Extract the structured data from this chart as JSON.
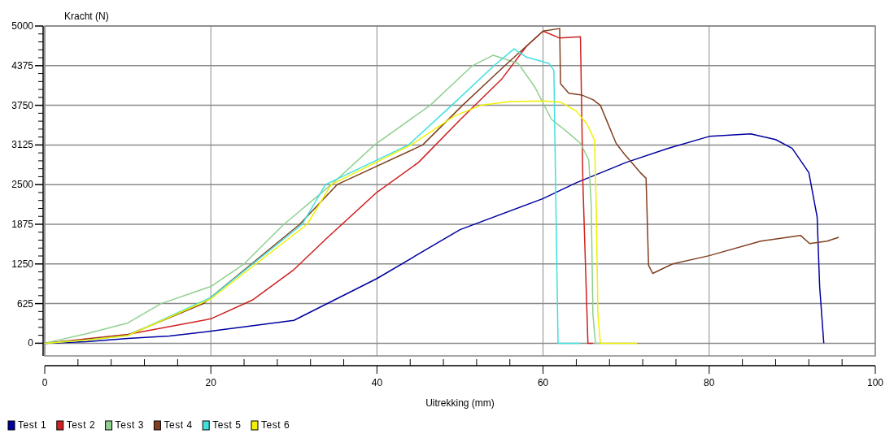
{
  "chart_data": {
    "type": "line",
    "xlabel": "Uitrekking (mm)",
    "ylabel": "Kracht (N)",
    "xlim": [
      0,
      100
    ],
    "ylim": [
      -200,
      5000
    ],
    "xticks": [
      0,
      {
        "value": 4,
        "label": null
      },
      {
        "value": 8,
        "label": null
      },
      {
        "value": 12,
        "label": null
      },
      {
        "value": 16,
        "label": null
      },
      20,
      {
        "value": 24,
        "label": null
      },
      {
        "value": 28,
        "label": null
      },
      {
        "value": 32,
        "label": null
      },
      {
        "value": 36,
        "label": null
      },
      40,
      {
        "value": 44,
        "label": null
      },
      {
        "value": 48,
        "label": null
      },
      {
        "value": 52,
        "label": null
      },
      {
        "value": 56,
        "label": null
      },
      60,
      {
        "value": 64,
        "label": null
      },
      {
        "value": 68,
        "label": null
      },
      {
        "value": 72,
        "label": null
      },
      {
        "value": 76,
        "label": null
      },
      80,
      {
        "value": 84,
        "label": null
      },
      {
        "value": 88,
        "label": null
      },
      {
        "value": 92,
        "label": null
      },
      {
        "value": 96,
        "label": null
      },
      100
    ],
    "yticks": [
      0,
      {
        "value": 125,
        "label": null
      },
      {
        "value": 250,
        "label": null
      },
      {
        "value": 375,
        "label": null
      },
      {
        "value": 500,
        "label": null
      },
      625,
      {
        "value": 750,
        "label": null
      },
      {
        "value": 875,
        "label": null
      },
      {
        "value": 1000,
        "label": null
      },
      {
        "value": 1125,
        "label": null
      },
      1250,
      {
        "value": 1375,
        "label": null
      },
      {
        "value": 1500,
        "label": null
      },
      {
        "value": 1625,
        "label": null
      },
      {
        "value": 1750,
        "label": null
      },
      1875,
      {
        "value": 2000,
        "label": null
      },
      {
        "value": 2125,
        "label": null
      },
      {
        "value": 2250,
        "label": null
      },
      {
        "value": 2375,
        "label": null
      },
      2500,
      {
        "value": 2625,
        "label": null
      },
      {
        "value": 2750,
        "label": null
      },
      {
        "value": 2875,
        "label": null
      },
      {
        "value": 3000,
        "label": null
      },
      3125,
      {
        "value": 3250,
        "label": null
      },
      {
        "value": 3375,
        "label": null
      },
      {
        "value": 3500,
        "label": null
      },
      {
        "value": 3625,
        "label": null
      },
      3750,
      {
        "value": 3875,
        "label": null
      },
      {
        "value": 4000,
        "label": null
      },
      {
        "value": 4125,
        "label": null
      },
      {
        "value": 4250,
        "label": null
      },
      4375,
      {
        "value": 4500,
        "label": null
      },
      {
        "value": 4625,
        "label": null
      },
      {
        "value": 4750,
        "label": null
      },
      {
        "value": 4875,
        "label": null
      },
      5000
    ],
    "grid": true,
    "legend": "bottom",
    "marker": "none",
    "line_style": "solid",
    "series": [
      {
        "name": "Test 1",
        "color": "#0000a0",
        "x": [
          0,
          5,
          10,
          15,
          20,
          30,
          40,
          50,
          60,
          64,
          70,
          75,
          80,
          85,
          88,
          90,
          92,
          93,
          93.3,
          93.8
        ],
        "values": [
          0,
          25,
          75,
          115,
          190,
          360,
          1020,
          1790,
          2280,
          2530,
          2850,
          3070,
          3260,
          3300,
          3210,
          3070,
          2690,
          1990,
          895,
          0
        ]
      },
      {
        "name": "Test 2",
        "color": "#d02020",
        "x": [
          0,
          10,
          20,
          25,
          30,
          34,
          40,
          45,
          50,
          55,
          58,
          60,
          62,
          64.5,
          64.8,
          65.4,
          66
        ],
        "values": [
          0,
          140,
          385,
          680,
          1160,
          1660,
          2380,
          2850,
          3520,
          4160,
          4680,
          4920,
          4810,
          4830,
          2500,
          0,
          0
        ]
      },
      {
        "name": "Test 3",
        "color": "#90d090",
        "x": [
          0,
          5,
          10,
          14,
          20,
          24,
          28.8,
          34.5,
          39.7,
          46.4,
          51.5,
          54,
          57,
          59,
          61,
          63,
          64.5,
          65.5,
          65.8,
          66,
          66.3,
          67
        ],
        "values": [
          0,
          150,
          320,
          625,
          895,
          1250,
          1875,
          2500,
          3125,
          3750,
          4375,
          4540,
          4410,
          4040,
          3530,
          3320,
          3150,
          2890,
          2170,
          460,
          0,
          0
        ]
      },
      {
        "name": "Test 4",
        "color": "#804020",
        "x": [
          0,
          5,
          10,
          19.1,
          24.9,
          30.7,
          35.2,
          45.5,
          50.3,
          55.4,
          60,
          62,
          62.1,
          63.1,
          64.7,
          66,
          66.9,
          68.8,
          69.8,
          71.7,
          72.4,
          72.7,
          73.2,
          75.6,
          80,
          86.2,
          91,
          92.1,
          94.2,
          95.6
        ],
        "values": [
          0,
          60,
          130,
          625,
          1250,
          1875,
          2500,
          3125,
          3750,
          4375,
          4920,
          4960,
          4090,
          3940,
          3910,
          3840,
          3750,
          3150,
          2980,
          2690,
          2600,
          1230,
          1100,
          1250,
          1380,
          1610,
          1700,
          1570,
          1610,
          1670
        ]
      },
      {
        "name": "Test 5",
        "color": "#40e0e0",
        "x": [
          0,
          5,
          10,
          20,
          31,
          33.8,
          43.8,
          49,
          54.1,
          56.5,
          58,
          60.7,
          61.3,
          61.8,
          64.5
        ],
        "values": [
          0,
          50,
          120,
          720,
          1875,
          2500,
          3125,
          3750,
          4375,
          4640,
          4510,
          4410,
          4300,
          0,
          0
        ]
      },
      {
        "name": "Test 6",
        "color": "#f0f000",
        "x": [
          0,
          5,
          10,
          20,
          31.6,
          34.5,
          44.1,
          49.3,
          52.5,
          56,
          60,
          62.1,
          64,
          65.3,
          66.2,
          66.4,
          66.6,
          66.9,
          71.3
        ],
        "values": [
          0,
          50,
          120,
          700,
          1875,
          2500,
          3125,
          3580,
          3750,
          3810,
          3820,
          3800,
          3660,
          3450,
          3200,
          2170,
          460,
          0,
          0
        ]
      }
    ]
  }
}
